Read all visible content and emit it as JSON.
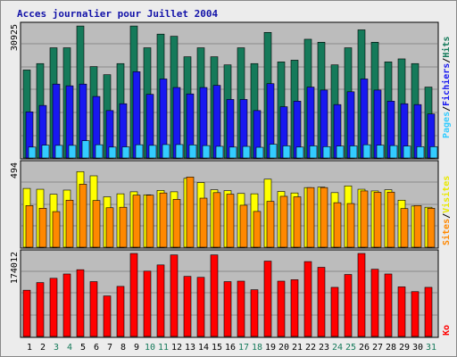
{
  "chart_data": [
    {
      "type": "bar",
      "title": "Acces journalier pour Juillet 2004",
      "categories": [
        "1",
        "2",
        "3",
        "4",
        "5",
        "6",
        "7",
        "8",
        "9",
        "10",
        "11",
        "12",
        "13",
        "14",
        "15",
        "16",
        "17",
        "18",
        "19",
        "20",
        "21",
        "22",
        "23",
        "24",
        "25",
        "26",
        "27",
        "28",
        "29",
        "30",
        "31"
      ],
      "weekend_days": [
        "3",
        "4",
        "10",
        "11",
        "17",
        "18",
        "24",
        "25",
        "31"
      ],
      "max_label": "30925",
      "ylim": [
        0,
        30925
      ],
      "legend": [
        {
          "label": "Pages",
          "color": "#33ccff"
        },
        {
          "label": "Fichiers",
          "color": "#1818f0"
        },
        {
          "label": "Hits",
          "color": "#157a5a"
        }
      ],
      "legend_separator": "/",
      "series": [
        {
          "name": "Hits",
          "color": "#157a5a",
          "values": [
            20600,
            22100,
            25800,
            25800,
            30900,
            21400,
            19500,
            22100,
            30900,
            25800,
            29000,
            28500,
            23700,
            25800,
            23700,
            21800,
            25800,
            22100,
            29400,
            22500,
            22900,
            27800,
            27100,
            21800,
            25800,
            30000,
            27100,
            22500,
            23200,
            22100,
            16600
          ]
        },
        {
          "name": "Fichiers",
          "color": "#1818f0",
          "values": [
            10800,
            12300,
            17300,
            16900,
            17300,
            14400,
            11100,
            12700,
            20200,
            14900,
            18500,
            16500,
            15000,
            16500,
            17000,
            13700,
            13700,
            11100,
            17400,
            12000,
            13300,
            16600,
            15900,
            12500,
            15500,
            18500,
            15900,
            13300,
            12700,
            12500,
            10300
          ]
        },
        {
          "name": "Pages",
          "color": "#33ccff",
          "values": [
            2550,
            3000,
            2950,
            2950,
            4040,
            3100,
            2550,
            2600,
            3100,
            2950,
            3140,
            3140,
            3060,
            2900,
            2730,
            2550,
            2710,
            2500,
            3220,
            2830,
            2550,
            2830,
            2650,
            2790,
            2830,
            3100,
            3000,
            2900,
            2790,
            2640,
            2640
          ]
        }
      ]
    },
    {
      "type": "bar",
      "max_label": "494",
      "ylim": [
        0,
        494
      ],
      "legend": [
        {
          "label": "Sites",
          "color": "#ff8800"
        },
        {
          "label": "Visites",
          "color": "#ffff00"
        }
      ],
      "legend_separator": "/",
      "series": [
        {
          "name": "Visites",
          "color": "#ffff00",
          "values": [
            350,
            345,
            315,
            340,
            450,
            425,
            300,
            318,
            330,
            312,
            338,
            330,
            410,
            385,
            342,
            337,
            320,
            318,
            405,
            332,
            323,
            355,
            358,
            325,
            365,
            345,
            335,
            342,
            280,
            245,
            238
          ]
        },
        {
          "name": "Sites",
          "color": "#ff8800",
          "values": [
            248,
            232,
            212,
            280,
            375,
            278,
            235,
            238,
            310,
            310,
            323,
            285,
            418,
            292,
            325,
            316,
            250,
            213,
            273,
            303,
            300,
            355,
            355,
            265,
            260,
            335,
            327,
            328,
            230,
            248,
            232
          ]
        }
      ]
    },
    {
      "type": "bar",
      "max_label": "174012",
      "ylim": [
        0,
        174012
      ],
      "legend": [
        {
          "label": "Ko",
          "color": "#ff0000"
        }
      ],
      "series": [
        {
          "name": "Ko",
          "color": "#ff0000",
          "values": [
            97000,
            113000,
            122000,
            131000,
            140000,
            115000,
            85000,
            105000,
            174000,
            137000,
            150000,
            171000,
            126000,
            124000,
            171000,
            115000,
            116000,
            98000,
            158000,
            116000,
            119000,
            157000,
            145000,
            103000,
            130000,
            174000,
            141000,
            131000,
            104000,
            94000,
            103000
          ]
        }
      ]
    }
  ]
}
